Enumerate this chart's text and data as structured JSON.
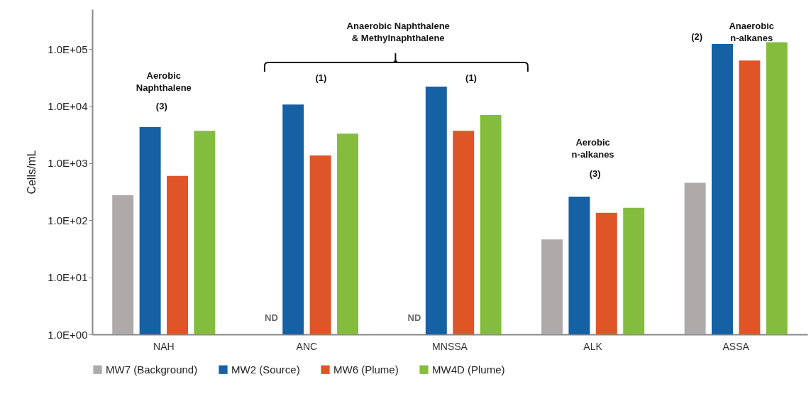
{
  "chart_data": {
    "type": "bar",
    "ylabel": "Cells/mL",
    "categories": [
      "NAH",
      "ANC",
      "MNSSA",
      "ALK",
      "ASSA"
    ],
    "series": [
      {
        "name": "MW7 (Background)",
        "color": "#aeaaaa",
        "values": [
          275,
          null,
          null,
          46,
          455
        ]
      },
      {
        "name": "MW2 (Source)",
        "color": "#1660a4",
        "values": [
          4300,
          10700,
          22000,
          260,
          123000
        ]
      },
      {
        "name": "MW6 (Plume)",
        "color": "#e05527",
        "values": [
          600,
          1370,
          3700,
          135,
          63000
        ]
      },
      {
        "name": "MW4D (Plume)",
        "color": "#84bd3e",
        "values": [
          3700,
          3300,
          7000,
          165,
          132000
        ]
      }
    ],
    "log": true,
    "ylim": [
      1,
      500000
    ],
    "yticks": [
      {
        "value": 1,
        "label": "1.0E+00"
      },
      {
        "value": 10,
        "label": "1.0E+01"
      },
      {
        "value": 100,
        "label": "1.0E+02"
      },
      {
        "value": 1000,
        "label": "1.0E+03"
      },
      {
        "value": 10000,
        "label": "1.0E+04"
      },
      {
        "value": 100000,
        "label": "1.0E+05"
      }
    ],
    "grid": false,
    "legend": "bottom",
    "annotations": [
      "Aerobic\nNaphthalene",
      "(3)",
      "Anaerobic Naphthalene\n& Methylnaphthalene",
      "(1)",
      "(1)",
      "Aerobic\nn-alkanes",
      "(3)",
      "(2)",
      "Anaerobic\nn-alkanes",
      "ND",
      "ND"
    ]
  }
}
